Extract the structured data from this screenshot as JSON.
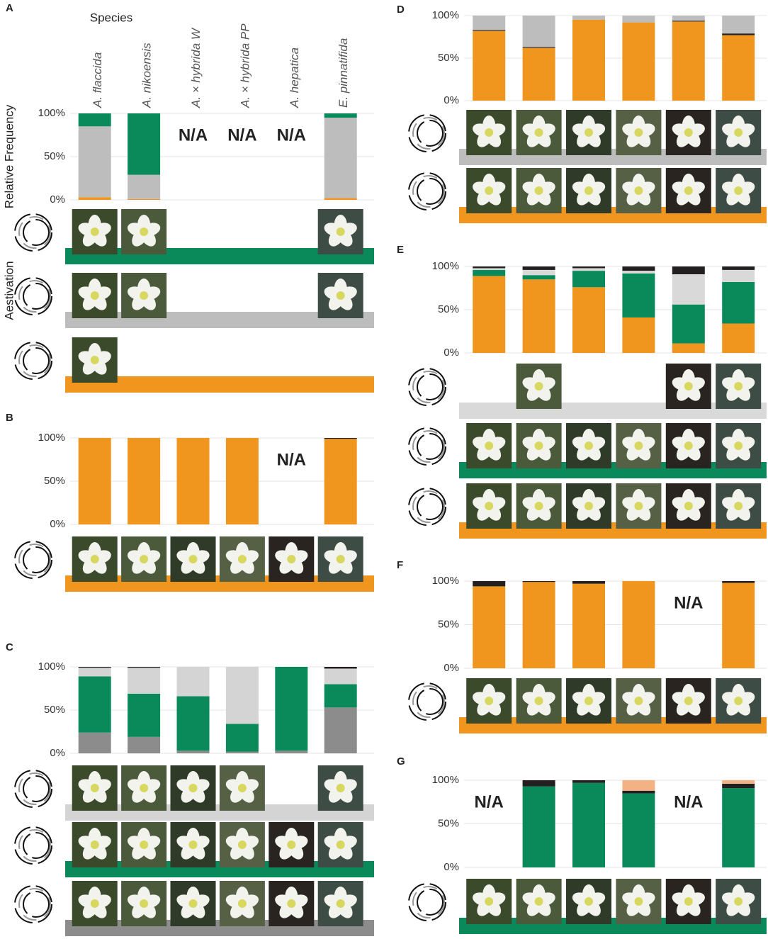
{
  "chart_data": [
    {
      "type": "bar",
      "label": "A",
      "species_heading": "Species",
      "ylabel": "Relative Frequency",
      "row_label": "Aestivation",
      "categories": [
        "A. flaccida",
        "A. nikoensis",
        "A. × hybrida W",
        "A. × hybrida PP",
        "A. hepatica",
        "E. pinnatifida"
      ],
      "annotations": [
        null,
        null,
        "N/A",
        "N/A",
        "N/A",
        null
      ],
      "series": [
        {
          "color": "#f0961e",
          "values": [
            3,
            1,
            null,
            null,
            null,
            2
          ]
        },
        {
          "color": "#bdbdbd",
          "values": [
            82,
            28,
            null,
            null,
            null,
            93
          ]
        },
        {
          "color": "#0a8a5a",
          "values": [
            15,
            71,
            null,
            null,
            null,
            5
          ]
        }
      ],
      "ylim": [
        0,
        100
      ],
      "yticks": [
        {
          "value": 0,
          "label": "0%"
        },
        {
          "value": 50,
          "label": "50%"
        },
        {
          "value": 100,
          "label": "100%"
        }
      ],
      "grid": true
    },
    {
      "type": "bar",
      "label": "B",
      "categories": [
        null,
        null,
        null,
        null,
        null,
        null
      ],
      "annotations": [
        null,
        null,
        null,
        null,
        "N/A",
        null
      ],
      "series": [
        {
          "color": "#f0961e",
          "values": [
            100,
            100,
            100,
            100,
            null,
            99
          ]
        },
        {
          "color": "#231f20",
          "values": [
            0,
            0,
            0,
            0,
            null,
            1
          ]
        }
      ],
      "ylim": [
        0,
        100
      ],
      "yticks": [
        {
          "value": 0,
          "label": "0%"
        },
        {
          "value": 50,
          "label": "50%"
        },
        {
          "value": 100,
          "label": "100%"
        }
      ],
      "grid": true
    },
    {
      "type": "bar",
      "label": "C",
      "categories": [
        null,
        null,
        null,
        null,
        null,
        null
      ],
      "annotations": [
        null,
        null,
        null,
        null,
        null,
        null
      ],
      "series": [
        {
          "color": "#8c8c8c",
          "values": [
            24,
            19,
            3,
            2,
            3,
            53
          ]
        },
        {
          "color": "#0a8a5a",
          "values": [
            65,
            50,
            63,
            32,
            97,
            27
          ]
        },
        {
          "color": "#d4d4d4",
          "values": [
            10,
            30,
            34,
            66,
            0,
            18
          ]
        },
        {
          "color": "#231f20",
          "values": [
            1,
            1,
            0,
            0,
            0,
            2
          ]
        }
      ],
      "ylim": [
        0,
        100
      ],
      "yticks": [
        {
          "value": 0,
          "label": "0%"
        },
        {
          "value": 50,
          "label": "50%"
        },
        {
          "value": 100,
          "label": "100%"
        }
      ],
      "grid": true
    },
    {
      "type": "bar",
      "label": "D",
      "categories": [
        null,
        null,
        null,
        null,
        null,
        null
      ],
      "annotations": [
        null,
        null,
        null,
        null,
        null,
        null
      ],
      "series": [
        {
          "color": "#f0961e",
          "values": [
            82,
            62,
            95,
            92,
            93,
            77
          ]
        },
        {
          "color": "#231f20",
          "values": [
            1,
            1,
            0,
            0,
            1,
            2
          ]
        },
        {
          "color": "#bdbdbd",
          "values": [
            17,
            37,
            5,
            8,
            6,
            21
          ]
        }
      ],
      "ylim": [
        0,
        100
      ],
      "yticks": [
        {
          "value": 0,
          "label": "0%"
        },
        {
          "value": 50,
          "label": "50%"
        },
        {
          "value": 100,
          "label": "100%"
        }
      ],
      "grid": true
    },
    {
      "type": "bar",
      "label": "E",
      "categories": [
        null,
        null,
        null,
        null,
        null,
        null
      ],
      "annotations": [
        null,
        null,
        null,
        null,
        null,
        null
      ],
      "series": [
        {
          "color": "#f0961e",
          "values": [
            89,
            85,
            76,
            41,
            11,
            34
          ]
        },
        {
          "color": "#0a8a5a",
          "values": [
            7,
            5,
            19,
            51,
            45,
            48
          ]
        },
        {
          "color": "#d9d9d9",
          "values": [
            2,
            6,
            3,
            3,
            35,
            14
          ]
        },
        {
          "color": "#231f20",
          "values": [
            2,
            4,
            2,
            5,
            9,
            4
          ]
        }
      ],
      "ylim": [
        0,
        100
      ],
      "yticks": [
        {
          "value": 0,
          "label": "0%"
        },
        {
          "value": 50,
          "label": "50%"
        },
        {
          "value": 100,
          "label": "100%"
        }
      ],
      "grid": true
    },
    {
      "type": "bar",
      "label": "F",
      "categories": [
        null,
        null,
        null,
        null,
        null,
        null
      ],
      "annotations": [
        null,
        null,
        null,
        null,
        "N/A",
        null
      ],
      "series": [
        {
          "color": "#f0961e",
          "values": [
            94,
            99,
            97,
            100,
            null,
            98
          ]
        },
        {
          "color": "#231f20",
          "values": [
            6,
            1,
            3,
            0,
            null,
            2
          ]
        }
      ],
      "ylim": [
        0,
        100
      ],
      "yticks": [
        {
          "value": 0,
          "label": "0%"
        },
        {
          "value": 50,
          "label": "50%"
        },
        {
          "value": 100,
          "label": "100%"
        }
      ],
      "grid": true
    },
    {
      "type": "bar",
      "label": "G",
      "categories": [
        null,
        null,
        null,
        null,
        null,
        null
      ],
      "annotations": [
        "N/A",
        null,
        null,
        null,
        "N/A",
        null
      ],
      "series": [
        {
          "color": "#0a8a5a",
          "values": [
            null,
            93,
            97,
            85,
            null,
            91
          ]
        },
        {
          "color": "#231f20",
          "values": [
            null,
            7,
            3,
            3,
            null,
            5
          ]
        },
        {
          "color": "#f4b183",
          "values": [
            null,
            0,
            0,
            12,
            null,
            4
          ]
        }
      ],
      "ylim": [
        0,
        100
      ],
      "yticks": [
        {
          "value": 0,
          "label": "0%"
        },
        {
          "value": 50,
          "label": "50%"
        },
        {
          "value": 100,
          "label": "100%"
        }
      ],
      "grid": true
    }
  ]
}
